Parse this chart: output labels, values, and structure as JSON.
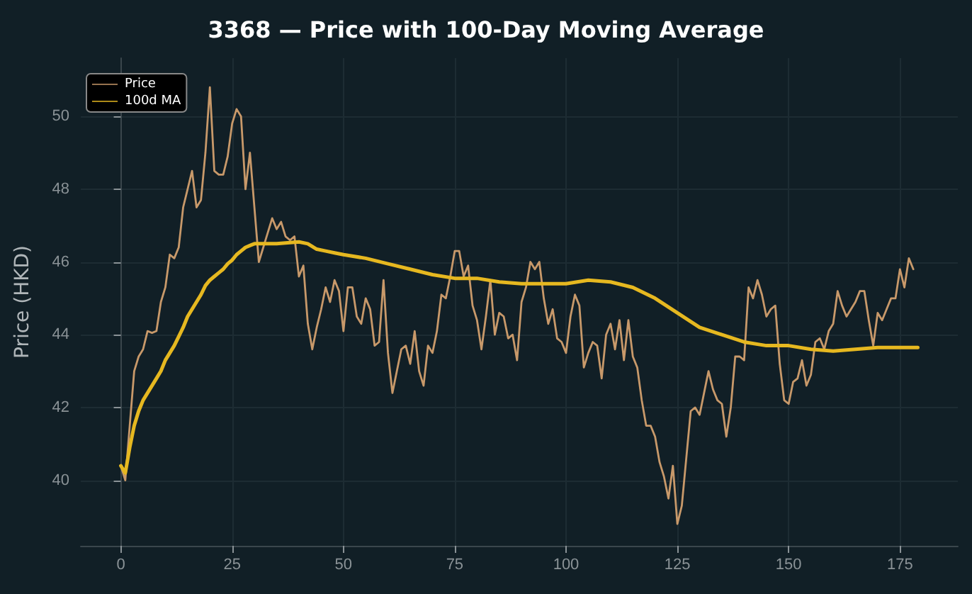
{
  "chart_data": {
    "type": "line",
    "title": "3368 — Price with 100-Day Moving Average",
    "ylabel": "Price (HKD)",
    "xlim": [
      -9,
      188
    ],
    "xticks": [
      0,
      25,
      50,
      75,
      100,
      125,
      150,
      175
    ],
    "ylim": [
      38.2,
      51.6
    ],
    "yticks": [
      40,
      42,
      44,
      46,
      48,
      50
    ],
    "grid": true,
    "legend": "top left",
    "marker": "none",
    "line_style": "solid",
    "series": [
      {
        "name": "Price",
        "color": "#c8996a",
        "x": [
          0,
          1,
          2,
          3,
          4,
          5,
          6,
          7,
          8,
          9,
          10,
          11,
          12,
          13,
          14,
          15,
          16,
          17,
          18,
          19,
          20,
          21,
          22,
          23,
          24,
          25,
          26,
          27,
          28,
          29,
          30,
          31,
          32,
          33,
          34,
          35,
          36,
          37,
          38,
          39,
          40,
          41,
          42,
          43,
          44,
          45,
          46,
          47,
          48,
          49,
          50,
          51,
          52,
          53,
          54,
          55,
          56,
          57,
          58,
          59,
          60,
          61,
          62,
          63,
          64,
          65,
          66,
          67,
          68,
          69,
          70,
          71,
          72,
          73,
          74,
          75,
          76,
          77,
          78,
          79,
          80,
          81,
          82,
          83,
          84,
          85,
          86,
          87,
          88,
          89,
          90,
          91,
          92,
          93,
          94,
          95,
          96,
          97,
          98,
          99,
          100,
          101,
          102,
          103,
          104,
          105,
          106,
          107,
          108,
          109,
          110,
          111,
          112,
          113,
          114,
          115,
          116,
          117,
          118,
          119,
          120,
          121,
          122,
          123,
          124,
          125,
          126,
          127,
          128,
          129,
          130,
          131,
          132,
          133,
          134,
          135,
          136,
          137,
          138,
          139,
          140,
          141,
          142,
          143,
          144,
          145,
          146,
          147,
          148,
          149,
          150,
          151,
          152,
          153,
          154,
          155,
          156,
          157,
          158,
          159,
          160,
          161,
          162,
          163,
          164,
          165,
          166,
          167,
          168,
          169,
          170,
          171,
          172,
          173,
          174,
          175,
          176,
          177,
          178
        ],
        "values": [
          40.4,
          40.0,
          41.5,
          43.0,
          43.4,
          43.6,
          44.1,
          44.05,
          44.1,
          44.9,
          45.3,
          46.2,
          46.1,
          46.4,
          47.5,
          48.0,
          48.5,
          47.5,
          47.7,
          49.0,
          50.8,
          48.5,
          48.4,
          48.4,
          48.9,
          49.8,
          50.2,
          50.0,
          48.0,
          49.0,
          47.5,
          46.0,
          46.4,
          46.8,
          47.2,
          46.9,
          47.1,
          46.7,
          46.6,
          46.7,
          45.6,
          45.9,
          44.3,
          43.6,
          44.2,
          44.7,
          45.3,
          44.9,
          45.5,
          45.2,
          44.1,
          45.3,
          45.3,
          44.5,
          44.3,
          45.0,
          44.7,
          43.7,
          43.8,
          45.5,
          43.5,
          42.4,
          43.0,
          43.6,
          43.7,
          43.2,
          44.1,
          43.0,
          42.6,
          43.7,
          43.5,
          44.1,
          45.1,
          45.0,
          45.6,
          46.3,
          46.3,
          45.6,
          45.9,
          44.8,
          44.4,
          43.6,
          44.5,
          45.5,
          44.0,
          44.6,
          44.5,
          43.9,
          44.0,
          43.3,
          44.9,
          45.3,
          46.0,
          45.8,
          46.0,
          45.0,
          44.3,
          44.7,
          43.9,
          43.8,
          43.5,
          44.5,
          45.1,
          44.8,
          43.1,
          43.5,
          43.8,
          43.7,
          42.8,
          44.0,
          44.3,
          43.6,
          44.4,
          43.3,
          44.4,
          43.4,
          43.1,
          42.2,
          41.5,
          41.5,
          41.2,
          40.5,
          40.1,
          39.5,
          40.4,
          38.8,
          39.3,
          40.6,
          41.9,
          42.0,
          41.8,
          42.4,
          43.0,
          42.5,
          42.2,
          42.1,
          41.2,
          42.0,
          43.4,
          43.4,
          43.3,
          45.3,
          45.0,
          45.5,
          45.1,
          44.5,
          44.7,
          44.8,
          43.2,
          42.2,
          42.1,
          42.7,
          42.8,
          43.3,
          42.6,
          42.9,
          43.8,
          43.9,
          43.6,
          44.1,
          44.3,
          45.2,
          44.8,
          44.5,
          44.7,
          44.9,
          45.2,
          45.2,
          44.4,
          43.7,
          44.6,
          44.4,
          44.7,
          45.0,
          45.0,
          45.8,
          45.3,
          46.1,
          45.8
        ]
      },
      {
        "name": "100d MA",
        "color": "#e6b820",
        "x": [
          0,
          1,
          2,
          3,
          4,
          5,
          6,
          7,
          8,
          9,
          10,
          11,
          12,
          13,
          14,
          15,
          16,
          17,
          18,
          19,
          20,
          21,
          22,
          23,
          24,
          25,
          26,
          27,
          28,
          29,
          30,
          32,
          35,
          40,
          42,
          44,
          46,
          48,
          50,
          55,
          60,
          65,
          70,
          75,
          80,
          85,
          90,
          95,
          100,
          105,
          110,
          115,
          120,
          125,
          130,
          135,
          140,
          145,
          150,
          155,
          160,
          165,
          170,
          175,
          179
        ],
        "values": [
          40.4,
          40.2,
          40.9,
          41.5,
          41.9,
          42.2,
          42.4,
          42.6,
          42.8,
          43.0,
          43.3,
          43.5,
          43.7,
          43.95,
          44.2,
          44.5,
          44.7,
          44.9,
          45.1,
          45.35,
          45.5,
          45.6,
          45.7,
          45.8,
          45.95,
          46.05,
          46.2,
          46.3,
          46.4,
          46.45,
          46.5,
          46.5,
          46.5,
          46.55,
          46.5,
          46.35,
          46.3,
          46.25,
          46.2,
          46.1,
          45.95,
          45.8,
          45.65,
          45.55,
          45.55,
          45.45,
          45.4,
          45.4,
          45.4,
          45.5,
          45.45,
          45.3,
          45.0,
          44.6,
          44.2,
          44.0,
          43.8,
          43.7,
          43.7,
          43.6,
          43.55,
          43.6,
          43.65,
          43.65,
          43.65
        ]
      }
    ]
  }
}
